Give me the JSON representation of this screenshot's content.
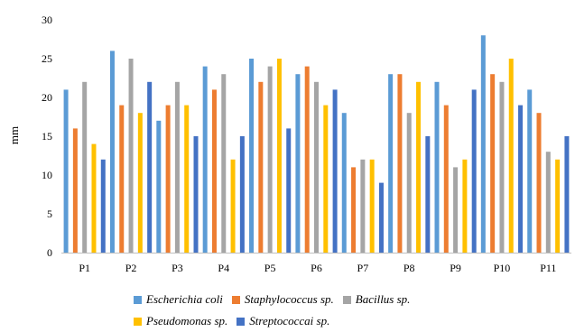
{
  "chart_data": {
    "type": "bar",
    "title": "",
    "xlabel": "",
    "ylabel": "mm",
    "ylim": [
      0,
      30
    ],
    "yticks": [
      0,
      5,
      10,
      15,
      20,
      25,
      30
    ],
    "grid": false,
    "legend_position": "bottom",
    "categories": [
      "P1",
      "P2",
      "P3",
      "P4",
      "P5",
      "P6",
      "P7",
      "P8",
      "P9",
      "P10",
      "P11"
    ],
    "series": [
      {
        "name": "Escherichia coli",
        "color": "#5b9bd5",
        "values": [
          21,
          26,
          17,
          24,
          25,
          23,
          18,
          23,
          22,
          28,
          21
        ]
      },
      {
        "name": "Staphylococcus sp.",
        "color": "#ed7d31",
        "values": [
          16,
          19,
          19,
          21,
          22,
          24,
          11,
          23,
          19,
          23,
          18
        ]
      },
      {
        "name": "Bacillus sp.",
        "color": "#a5a5a5",
        "values": [
          22,
          25,
          22,
          23,
          24,
          22,
          12,
          18,
          11,
          22,
          13
        ]
      },
      {
        "name": "Pseudomonas sp.",
        "color": "#ffc000",
        "values": [
          14,
          18,
          19,
          12,
          25,
          19,
          12,
          22,
          12,
          25,
          12
        ]
      },
      {
        "name": "Streptococcai sp.",
        "color": "#4472c4",
        "values": [
          12,
          22,
          15,
          15,
          16,
          21,
          9,
          15,
          21,
          19,
          15
        ]
      }
    ]
  }
}
